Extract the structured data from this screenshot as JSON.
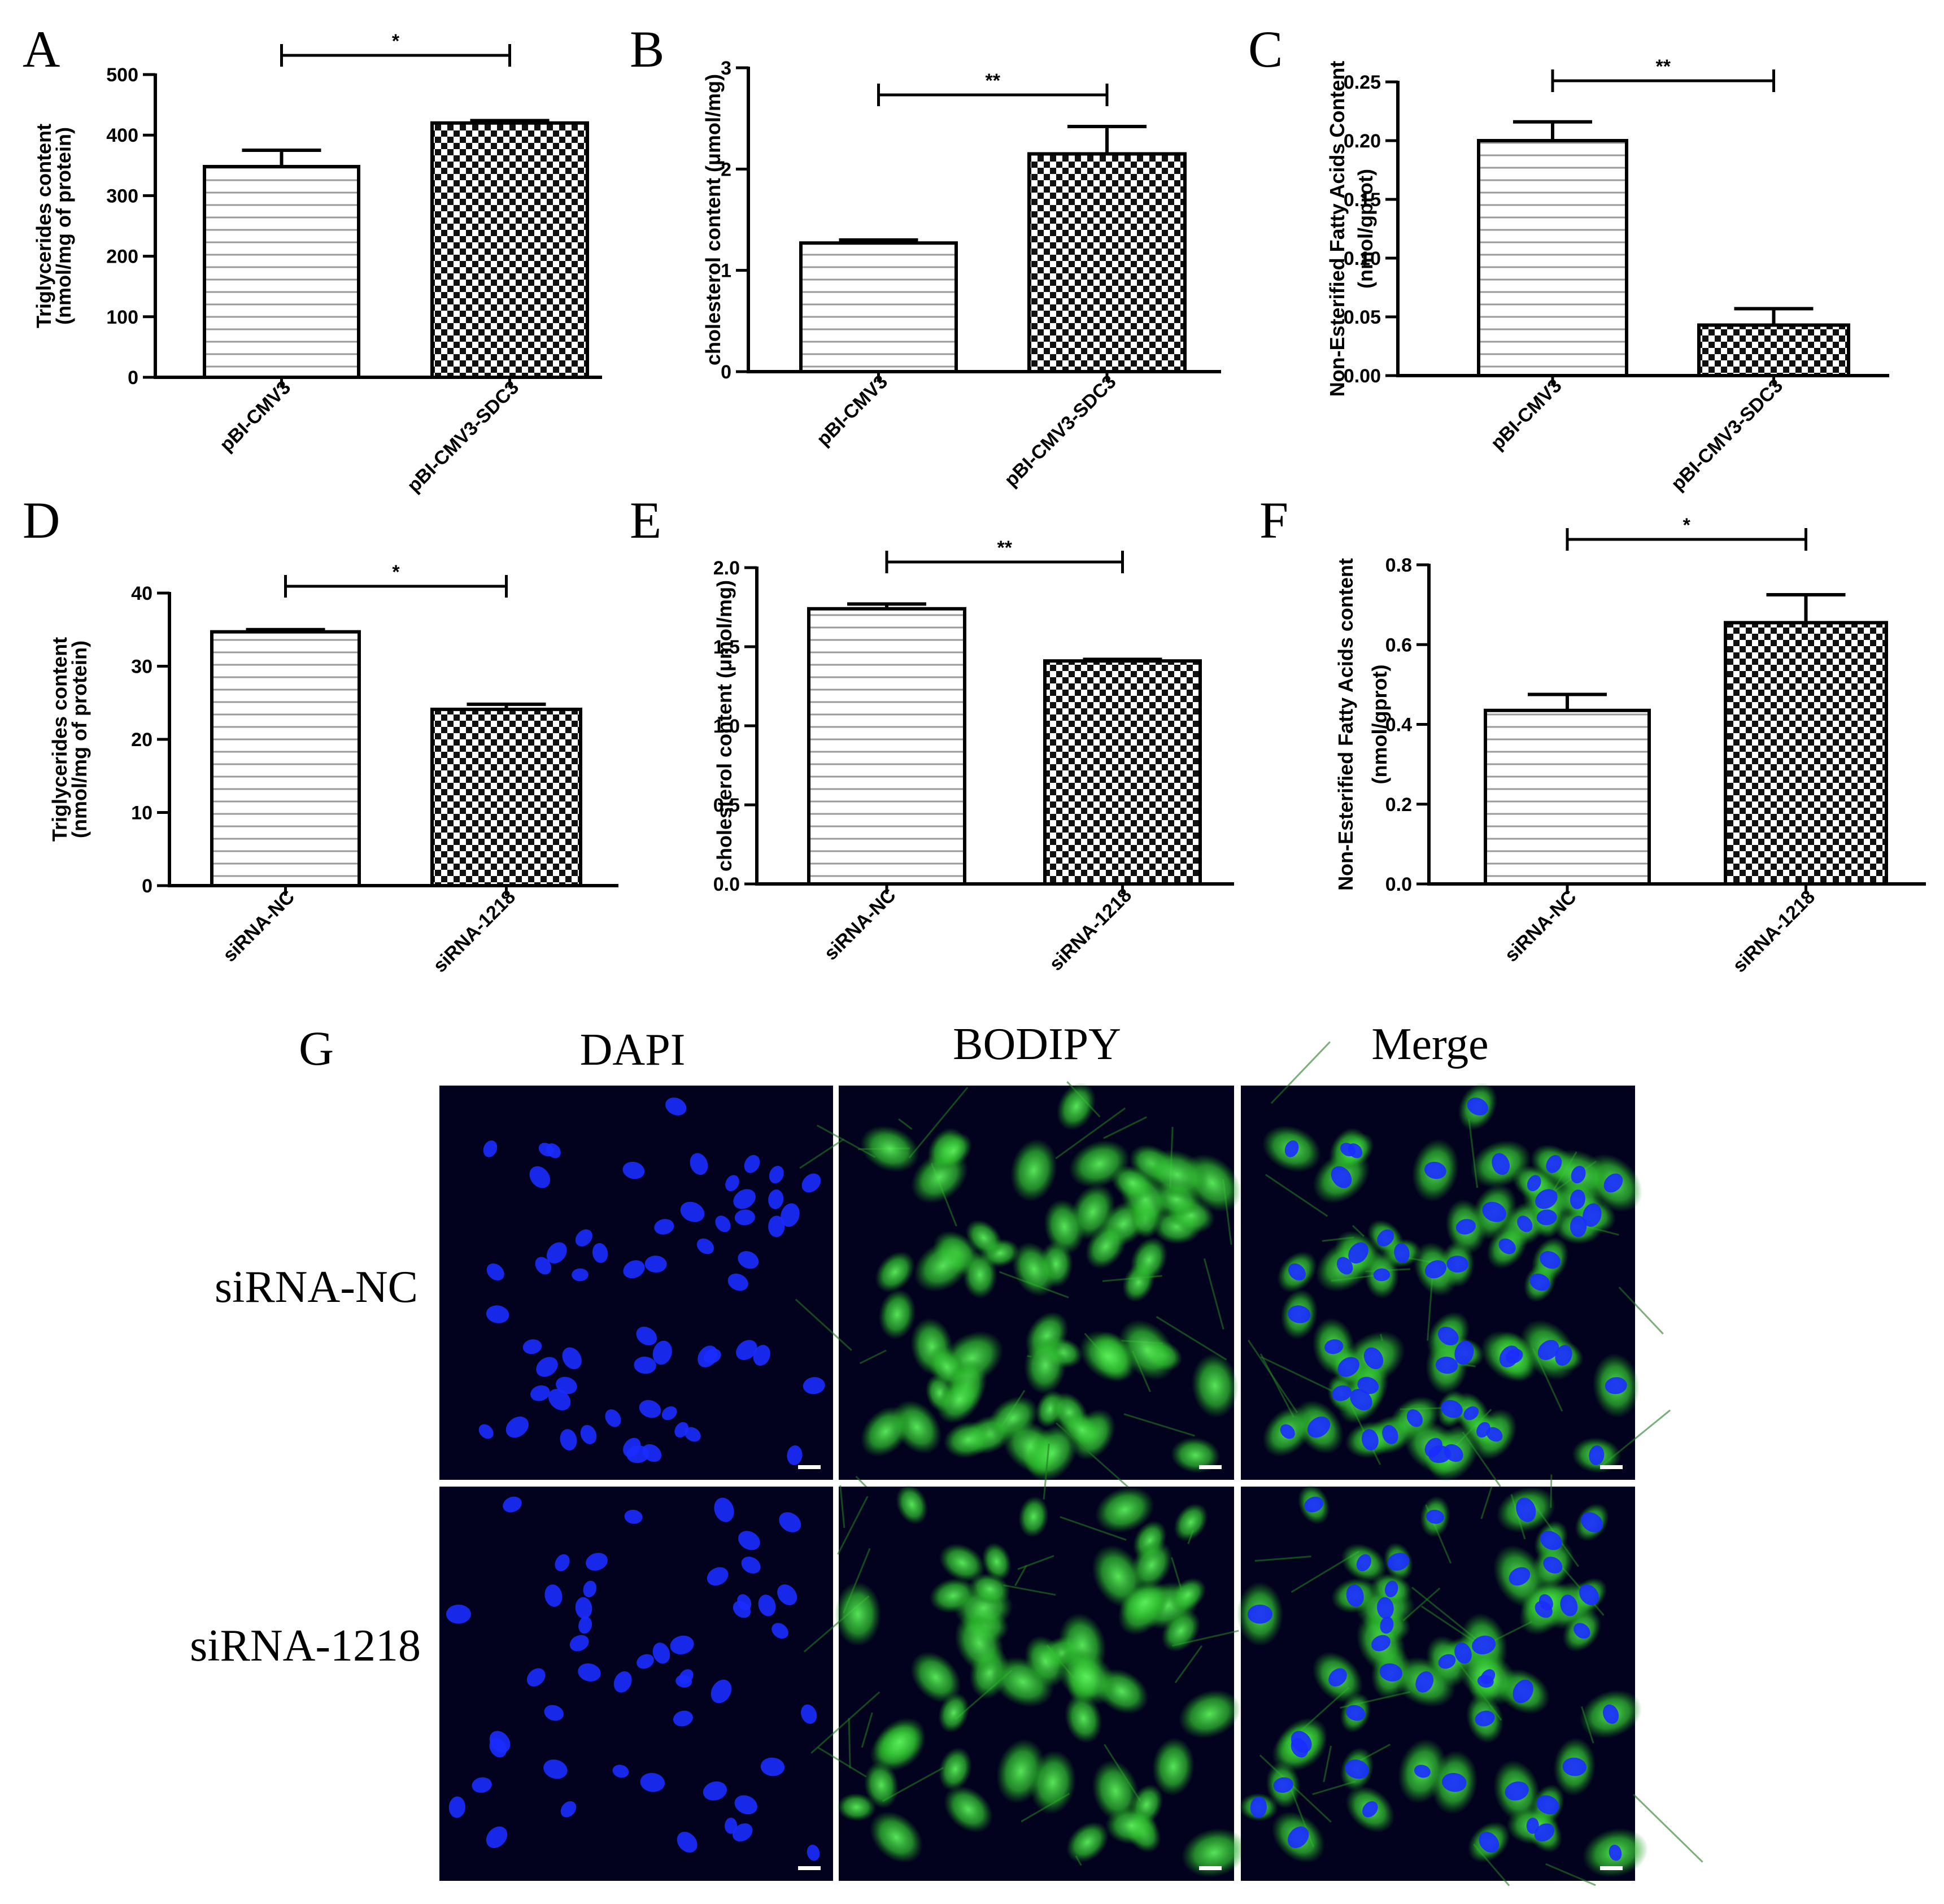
{
  "figure": {
    "panel_g": {
      "letter": "G",
      "column_labels": [
        "DAPI",
        "BODIPY",
        "Merge"
      ],
      "row_labels": [
        "siRNA-NC",
        "siRNA-1218"
      ]
    }
  },
  "colors": {
    "axis": "#000000",
    "background": "#ffffff",
    "micrograph_background": "#02021e",
    "dapi": "#1a2cff",
    "bodipy": "#32d232"
  },
  "chart_data": [
    {
      "panel": "A",
      "type": "bar",
      "pattern": [
        "hlines",
        "checker"
      ],
      "categories": [
        "pBI-CMV3",
        "pBI-CMV3-SDC3"
      ],
      "values": [
        348,
        420
      ],
      "errors": [
        27,
        4
      ],
      "ylabel": [
        "Triglycerides content",
        "(nmol/mg of protein)"
      ],
      "ylim": [
        0,
        500
      ],
      "yticks": [
        "0",
        "100",
        "200",
        "300",
        "400",
        "500"
      ],
      "significance": "*"
    },
    {
      "panel": "B",
      "type": "bar",
      "pattern": [
        "hlines",
        "checker"
      ],
      "categories": [
        "pBI-CMV3",
        "pBI-CMV3-SDC3"
      ],
      "values": [
        1.27,
        2.15
      ],
      "errors": [
        0.03,
        0.27
      ],
      "ylabel": [
        "cholesterol content (μmol/mg)"
      ],
      "ylim": [
        0,
        3
      ],
      "yticks": [
        "0",
        "1",
        "2",
        "3"
      ],
      "significance": "**"
    },
    {
      "panel": "C",
      "type": "bar",
      "pattern": [
        "hlines",
        "checker"
      ],
      "categories": [
        "pBI-CMV3",
        "pBI-CMV3-SDC3"
      ],
      "values": [
        0.2,
        0.043
      ],
      "errors": [
        0.016,
        0.014
      ],
      "ylabel": [
        "Non-Esterified Fatty Acids Content",
        "(nmol/gprot)"
      ],
      "ylim": [
        0,
        0.25
      ],
      "yticks": [
        "0.00",
        "0.05",
        "0.10",
        "0.15",
        "0.20",
        "0.25"
      ],
      "significance": "**"
    },
    {
      "panel": "D",
      "type": "bar",
      "pattern": [
        "hlines",
        "checker"
      ],
      "categories": [
        "siRNA-NC",
        "siRNA-1218"
      ],
      "values": [
        34.7,
        24.1
      ],
      "errors": [
        0.3,
        0.7
      ],
      "ylabel": [
        "Triglycerides content",
        "(nmol/mg of protein)"
      ],
      "ylim": [
        0,
        40
      ],
      "yticks": [
        "0",
        "10",
        "20",
        "30",
        "40"
      ],
      "significance": "*"
    },
    {
      "panel": "E",
      "type": "bar",
      "pattern": [
        "hlines",
        "checker"
      ],
      "categories": [
        "siRNA-NC",
        "siRNA-1218"
      ],
      "values": [
        1.74,
        1.41
      ],
      "errors": [
        0.03,
        0.01
      ],
      "ylabel": [
        "cholesterol content (μmol/mg)"
      ],
      "ylim": [
        0,
        2.0
      ],
      "yticks": [
        "0.0",
        "0.5",
        "1.0",
        "1.5",
        "2.0"
      ],
      "significance": "**"
    },
    {
      "panel": "F",
      "type": "bar",
      "pattern": [
        "hlines",
        "checker"
      ],
      "categories": [
        "siRNA-NC",
        "siRNA-1218"
      ],
      "values": [
        0.435,
        0.655
      ],
      "errors": [
        0.04,
        0.07
      ],
      "ylabel": [
        "Non-Esterified Fatty Acids content",
        "(nmol/gprot)"
      ],
      "ylim": [
        0,
        0.8
      ],
      "yticks": [
        "0.0",
        "0.2",
        "0.4",
        "0.6",
        "0.8"
      ],
      "significance": "*"
    }
  ]
}
